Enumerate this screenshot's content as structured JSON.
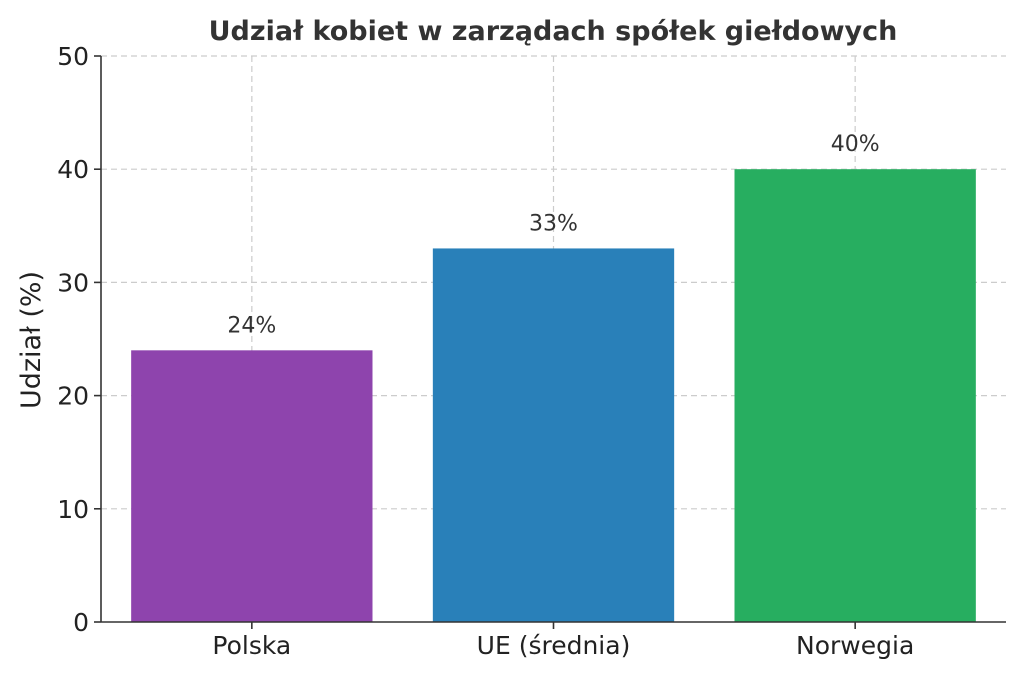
{
  "chart_data": {
    "type": "bar",
    "title": "Udział kobiet w zarządach spółek giełdowych",
    "xlabel": "",
    "ylabel": "Udział (%)",
    "ylim": [
      0,
      50
    ],
    "yticks": [
      0,
      10,
      20,
      30,
      40,
      50
    ],
    "grid": true,
    "categories": [
      "Polska",
      "UE (średnia)",
      "Norwegia"
    ],
    "values": [
      24,
      33,
      40
    ],
    "data_labels": [
      "24%",
      "33%",
      "40%"
    ],
    "colors": [
      "#8e44ad",
      "#2980b9",
      "#27ae60"
    ]
  }
}
